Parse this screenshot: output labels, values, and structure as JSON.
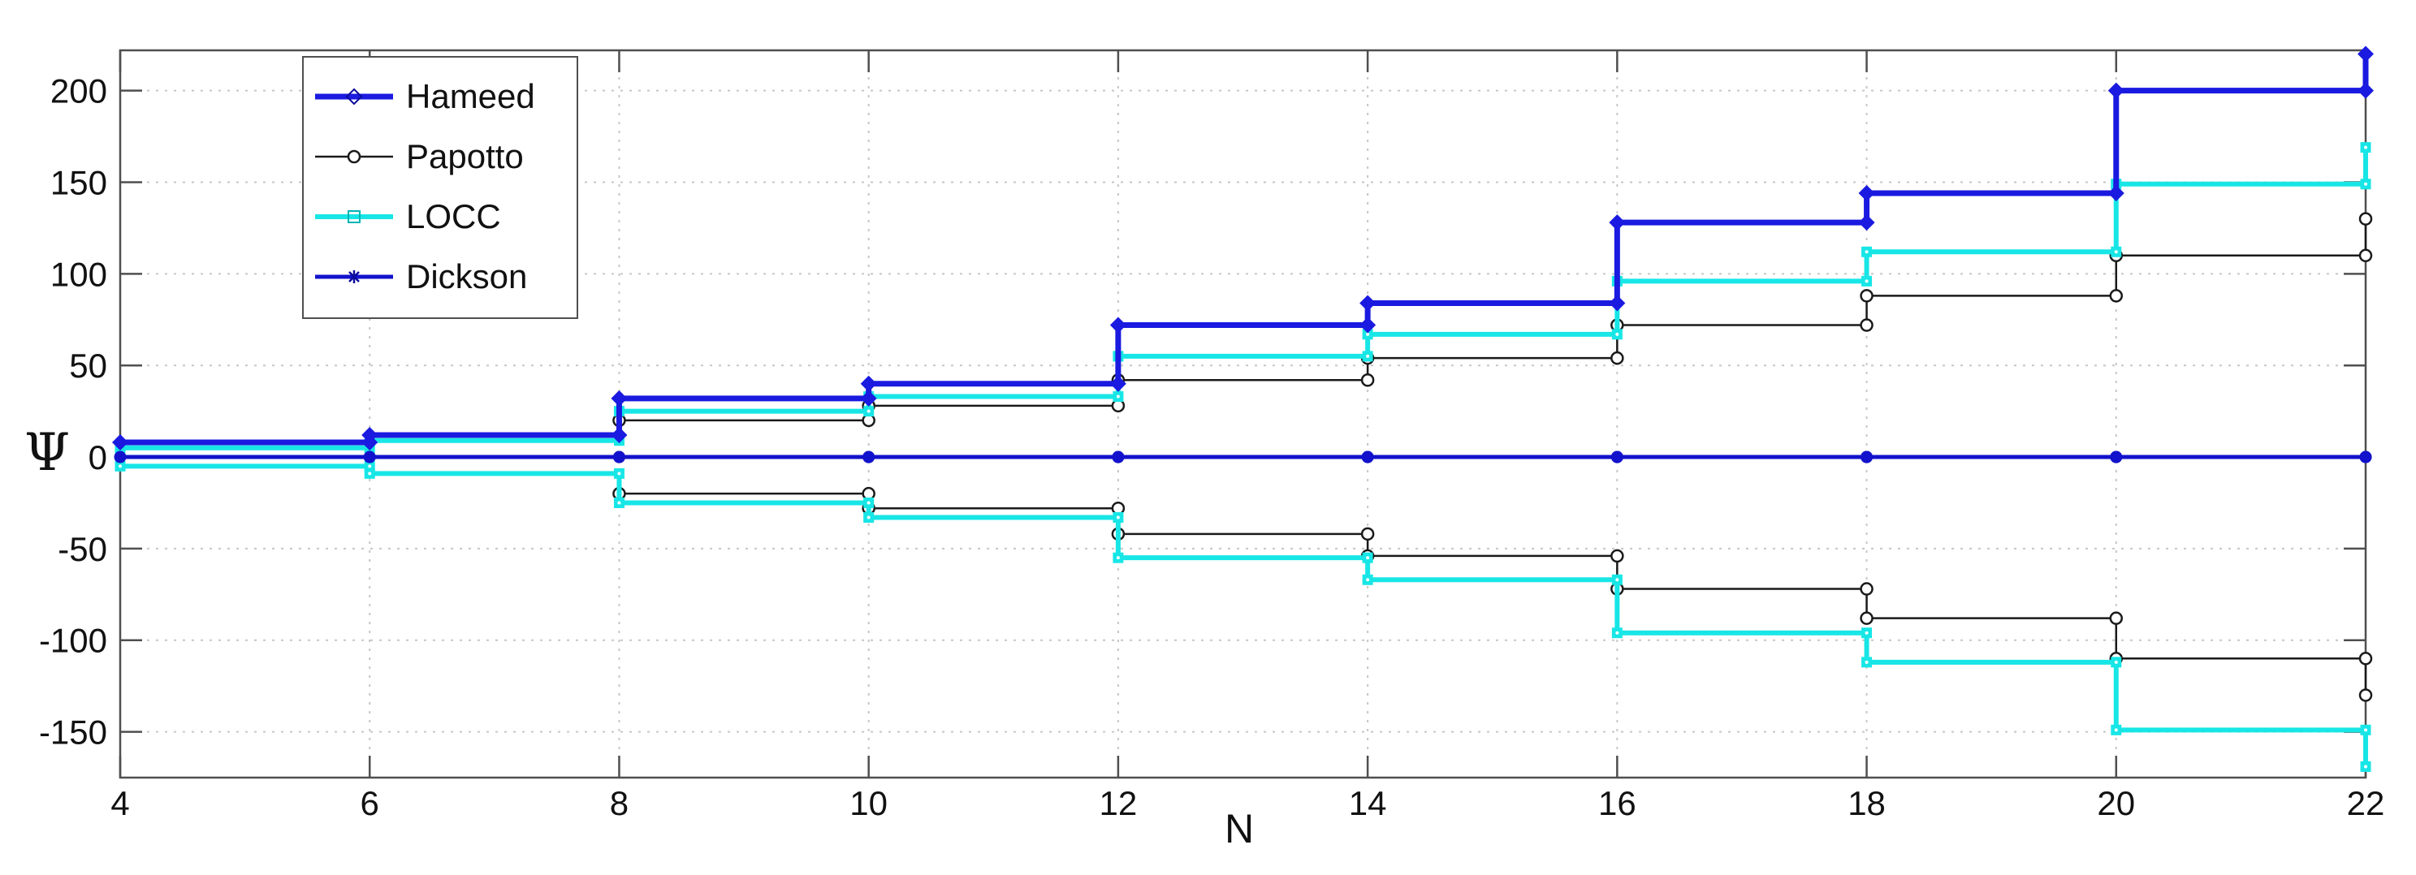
{
  "chart_data": {
    "type": "line",
    "subtype": "stairs-step-post",
    "xlabel": "N",
    "ylabel": "Ψ",
    "xlim": [
      4,
      22
    ],
    "ylim": [
      -175,
      222
    ],
    "x_ticks": [
      4,
      6,
      8,
      10,
      12,
      14,
      16,
      18,
      20,
      22
    ],
    "y_ticks": [
      -150,
      -100,
      -50,
      0,
      50,
      100,
      150,
      200
    ],
    "grid": true,
    "grid_style": "dotted-light-gray",
    "grid_color": "#c6c6c6",
    "axis_color": "#4f4f4f",
    "legend_position": "top-left",
    "series": [
      {
        "name": "Hameed",
        "color": "#1a1ae0",
        "line_width": 7,
        "marker": "filled-diamond",
        "branches": [
          {
            "x": [
              4,
              6,
              8,
              10,
              12,
              14,
              16,
              18,
              20,
              22
            ],
            "y": [
              8,
              12,
              32,
              40,
              72,
              84,
              128,
              144,
              200,
              220
            ]
          }
        ]
      },
      {
        "name": "Papotto",
        "color": "#1a1a1a",
        "line_width": 2.5,
        "marker": "open-circle",
        "branches": [
          {
            "x": [
              8,
              10,
              12,
              14,
              16,
              18,
              20,
              22
            ],
            "y": [
              20,
              28,
              42,
              54,
              72,
              88,
              110,
              130
            ]
          },
          {
            "x": [
              8,
              10,
              12,
              14,
              16,
              18,
              20,
              22
            ],
            "y": [
              -20,
              -28,
              -42,
              -54,
              -72,
              -88,
              -110,
              -130
            ]
          }
        ]
      },
      {
        "name": "LOCC",
        "color": "#18e6e6",
        "line_width": 6,
        "marker": "filled-square",
        "branches": [
          {
            "x": [
              4,
              6,
              8,
              10,
              12,
              14,
              16,
              18,
              20,
              22
            ],
            "y": [
              5,
              9,
              25,
              33,
              55,
              67,
              96,
              112,
              149,
              169
            ]
          },
          {
            "x": [
              4,
              6,
              8,
              10,
              12,
              14,
              16,
              18,
              20,
              22
            ],
            "y": [
              -5,
              -9,
              -25,
              -33,
              -55,
              -67,
              -96,
              -112,
              -149,
              -169
            ]
          }
        ]
      },
      {
        "name": "Dickson",
        "color": "#1212cc",
        "line_width": 5,
        "marker": "dot",
        "branches": [
          {
            "x": [
              4,
              6,
              8,
              10,
              12,
              14,
              16,
              18,
              20,
              22
            ],
            "y": [
              0,
              0,
              0,
              0,
              0,
              0,
              0,
              0,
              0,
              0
            ]
          }
        ]
      }
    ]
  }
}
